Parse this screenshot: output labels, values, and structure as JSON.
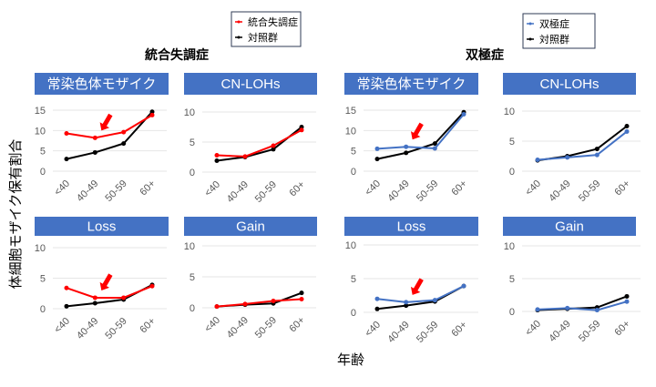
{
  "chart_data": {
    "y_axis_label": "体細胞モザイク保有割合",
    "x_axis_label": "年齢",
    "categories": [
      "<40",
      "40-49",
      "50-59",
      "60+"
    ],
    "colors": {
      "schizophrenia": "#FF0000",
      "bipolar": "#4472C4",
      "control": "#000000",
      "panel_header": "#4472C4",
      "arrow": "#FF0000",
      "grid": "#E6E6E6"
    },
    "groups": [
      {
        "title": "統合失調症",
        "legend": [
          {
            "name": "統合失調症",
            "color": "#FF0000"
          },
          {
            "name": "対照群",
            "color": "#000000"
          }
        ],
        "panels": [
          {
            "title": "常染色体モザイク",
            "type": "line",
            "ylim": [
              0,
              15
            ],
            "yticks": [
              "0",
              "5",
              "10",
              "15"
            ],
            "grid": true,
            "series": [
              {
                "name": "統合失調症",
                "values": [
                  9.3,
                  8.2,
                  9.6,
                  13.8
                ]
              },
              {
                "name": "対照群",
                "values": [
                  3.0,
                  4.6,
                  6.8,
                  14.6
                ]
              }
            ],
            "arrow_at": "40-49"
          },
          {
            "title": "CN-LOHs",
            "type": "line",
            "ylim": [
              0,
              10
            ],
            "yticks": [
              "0",
              "5",
              "10"
            ],
            "grid": true,
            "series": [
              {
                "name": "統合失調症",
                "values": [
                  2.8,
                  2.6,
                  4.4,
                  7.0
                ]
              },
              {
                "name": "対照群",
                "values": [
                  1.9,
                  2.5,
                  3.8,
                  7.5
                ]
              }
            ]
          },
          {
            "title": "Loss",
            "type": "line",
            "ylim": [
              0,
              10
            ],
            "yticks": [
              "0",
              "5",
              "10"
            ],
            "grid": true,
            "series": [
              {
                "name": "統合失調症",
                "values": [
                  3.4,
                  1.8,
                  1.8,
                  3.7
                ]
              },
              {
                "name": "対照群",
                "values": [
                  0.4,
                  0.9,
                  1.5,
                  3.9
                ]
              }
            ],
            "arrow_at": "40-49"
          },
          {
            "title": "Gain",
            "type": "line",
            "ylim": [
              0,
              10
            ],
            "yticks": [
              "0",
              "5",
              "10"
            ],
            "grid": true,
            "series": [
              {
                "name": "統合失調症",
                "values": [
                  0.2,
                  0.6,
                  1.1,
                  1.4
                ]
              },
              {
                "name": "対照群",
                "values": [
                  0.2,
                  0.5,
                  0.7,
                  2.4
                ]
              }
            ]
          }
        ]
      },
      {
        "title": "双極症",
        "legend": [
          {
            "name": "双極症",
            "color": "#4472C4"
          },
          {
            "name": "対照群",
            "color": "#000000"
          }
        ],
        "panels": [
          {
            "title": "常染色体モザイク",
            "type": "line",
            "ylim": [
              0,
              15
            ],
            "yticks": [
              "0",
              "5",
              "10",
              "15"
            ],
            "grid": true,
            "series": [
              {
                "name": "双極症",
                "values": [
                  5.5,
                  6.0,
                  5.6,
                  14.0
                ]
              },
              {
                "name": "対照群",
                "values": [
                  3.0,
                  4.5,
                  6.8,
                  14.5
                ]
              }
            ],
            "arrow_at": "40-49"
          },
          {
            "title": "CN-LOHs",
            "type": "line",
            "ylim": [
              0,
              10
            ],
            "yticks": [
              "0",
              "5",
              "10"
            ],
            "grid": true,
            "series": [
              {
                "name": "双極症",
                "values": [
                  1.9,
                  2.3,
                  2.7,
                  6.6
                ]
              },
              {
                "name": "対照群",
                "values": [
                  1.8,
                  2.5,
                  3.7,
                  7.5
                ]
              }
            ]
          },
          {
            "title": "Loss",
            "type": "line",
            "ylim": [
              0,
              10
            ],
            "yticks": [
              "0",
              "5",
              "10"
            ],
            "grid": true,
            "series": [
              {
                "name": "双極症",
                "values": [
                  2.0,
                  1.5,
                  1.8,
                  3.9
                ]
              },
              {
                "name": "対照群",
                "values": [
                  0.5,
                  1.0,
                  1.6,
                  3.9
                ]
              }
            ],
            "arrow_at": "40-49"
          },
          {
            "title": "Gain",
            "type": "line",
            "ylim": [
              0,
              10
            ],
            "yticks": [
              "0",
              "5",
              "10"
            ],
            "grid": true,
            "series": [
              {
                "name": "双極症",
                "values": [
                  0.3,
                  0.5,
                  0.2,
                  1.5
                ]
              },
              {
                "name": "対照群",
                "values": [
                  0.2,
                  0.4,
                  0.6,
                  2.3
                ]
              }
            ]
          }
        ]
      }
    ]
  }
}
